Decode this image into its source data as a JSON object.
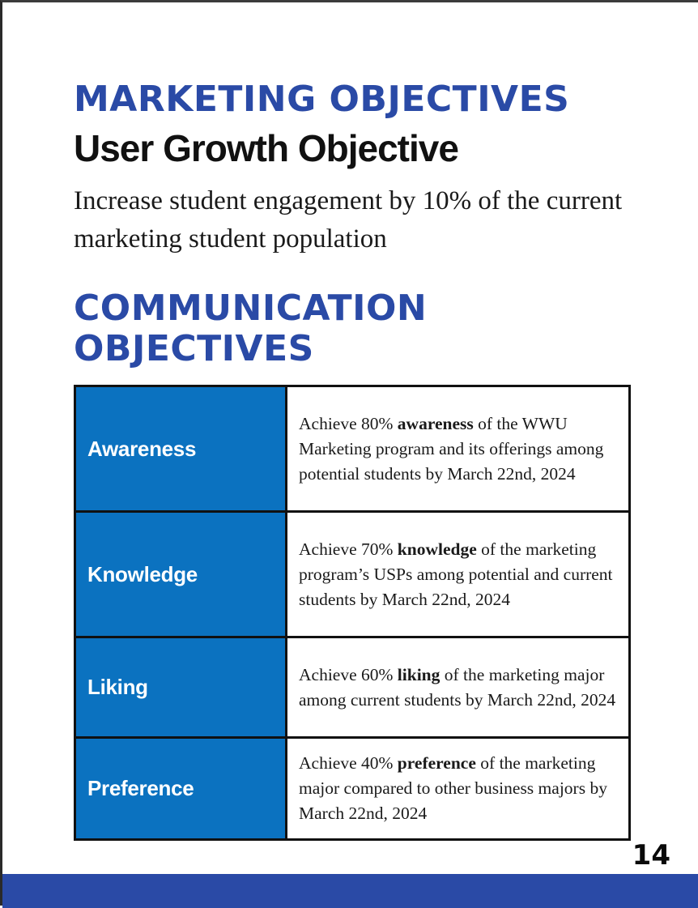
{
  "page": {
    "heading_main": "MARKETING OBJECTIVES",
    "heading_sub": "User Growth Objective",
    "intro_text": "Increase student engagement by 10% of the current marketing student population",
    "heading_comm": "COMMUNICATION OBJECTIVES",
    "page_number": "14"
  },
  "objectives": [
    {
      "label": "Awareness",
      "pre": "Achieve 80% ",
      "bold": "awareness",
      "post": " of the WWU Marketing program and its offerings among potential students by March 22nd, 2024"
    },
    {
      "label": "Knowledge",
      "pre": "Achieve 70% ",
      "bold": "knowledge",
      "post": " of the marketing program’s USPs among potential and current students by March 22nd, 2024"
    },
    {
      "label": "Liking",
      "pre": "Achieve 60% ",
      "bold": "liking",
      "post": " of the marketing major among current students by March 22nd, 2024"
    },
    {
      "label": "Preference",
      "pre": "Achieve 40% ",
      "bold": "preference",
      "post": " of the marketing major compared to other business majors by March 22nd, 2024"
    }
  ],
  "colors": {
    "heading_blue": "#2a4aa6",
    "cell_blue": "#0b72c0",
    "footer_blue": "#2a4aa6",
    "text_dark": "#111111"
  }
}
